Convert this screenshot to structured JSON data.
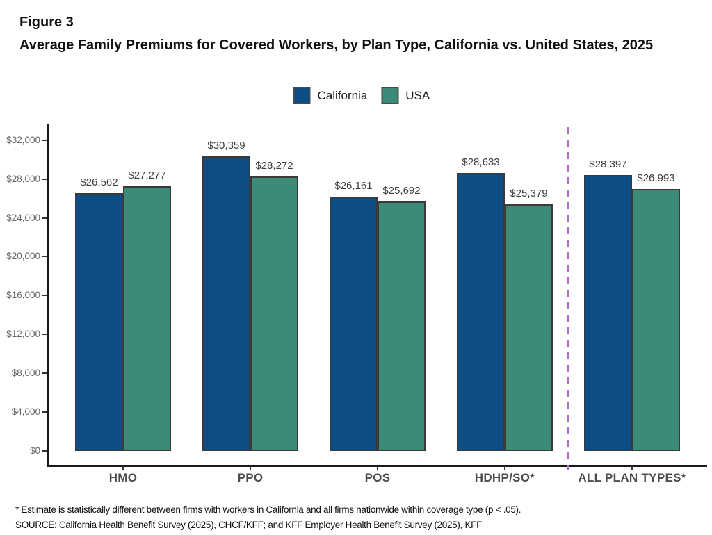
{
  "figure": {
    "label": "Figure 3",
    "title": "Average Family Premiums for Covered Workers, by Plan Type, California vs. United States, 2025"
  },
  "legend": {
    "items": [
      {
        "label": "California",
        "color": "#0e4e85"
      },
      {
        "label": "USA",
        "color": "#3c8a78"
      }
    ]
  },
  "chart_data": {
    "type": "bar",
    "title": "Average Family Premiums for Covered Workers, by Plan Type, California vs. United States, 2025",
    "categories": [
      "HMO",
      "PPO",
      "POS",
      "HDHP/SO*",
      "ALL PLAN TYPES*"
    ],
    "series": [
      {
        "name": "California",
        "color": "#0e4e85",
        "values": [
          26562,
          30359,
          26161,
          28633,
          28397
        ]
      },
      {
        "name": "USA",
        "color": "#3c8a78",
        "values": [
          27277,
          28272,
          25692,
          25379,
          26993
        ]
      }
    ],
    "value_label_prefix": "$",
    "xlabel": "",
    "ylabel": "",
    "ylim": [
      0,
      32000
    ],
    "ytick_step": 4000,
    "ytick_labels": [
      "$0",
      "$4,000",
      "$8,000",
      "$12,000",
      "$16,000",
      "$20,000",
      "$24,000",
      "$28,000",
      "$32,000"
    ],
    "grid": false,
    "legend_position": "top",
    "bar_border_color": "#3a3a3a",
    "separator": {
      "between": [
        "HDHP/SO*",
        "ALL PLAN TYPES*"
      ],
      "style": "dashed",
      "color": "#ae6cc3"
    }
  },
  "footnotes": {
    "line1": "* Estimate is statistically different between firms with workers in California and all firms nationwide within coverage type (p < .05).",
    "line2": "SOURCE: California Health Benefit Survey (2025), CHCF/KFF; and KFF Employer Health Benefit Survey (2025), KFF"
  }
}
